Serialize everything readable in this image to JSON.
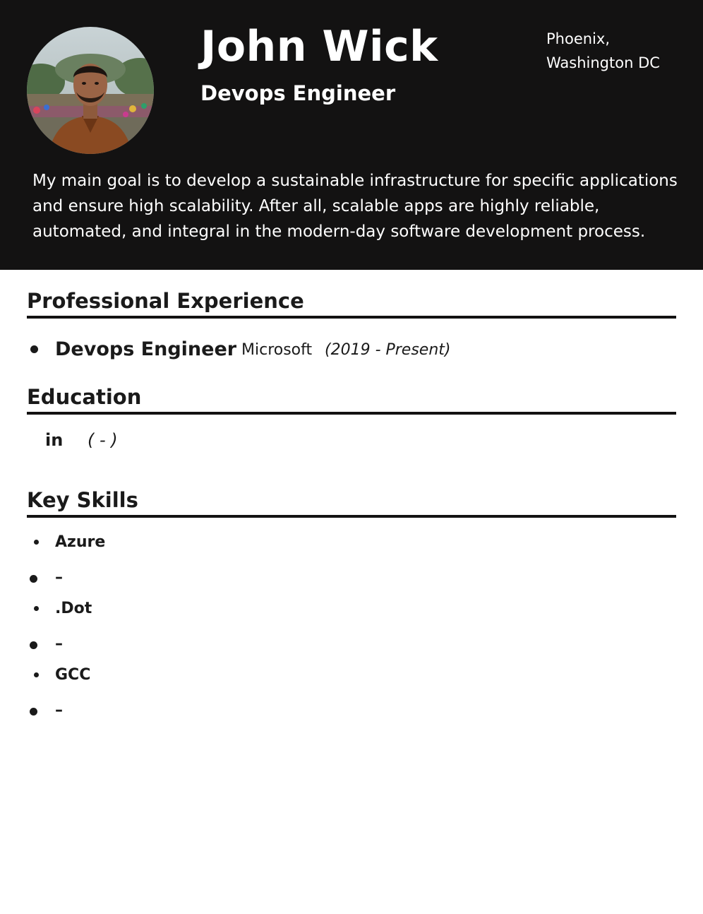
{
  "header": {
    "name": "John Wick",
    "role": "Devops Engineer",
    "location_line1": "Phoenix,",
    "location_line2": "Washington DC",
    "summary": "My main goal is to develop a sustainable infrastructure for specific applications and ensure high scalability. After all, scalable apps are highly reliable, automated, and integral in the modern-day software development process."
  },
  "experience": {
    "title": "Professional Experience",
    "items": [
      {
        "position": "Devops Engineer",
        "company": "Microsoft",
        "dates": "(2019 - Present)"
      }
    ]
  },
  "education": {
    "title": "Education",
    "items": [
      {
        "connector": "in",
        "dates": "( - )"
      }
    ]
  },
  "skills": {
    "title": "Key Skills",
    "items": [
      {
        "name": "Azure"
      },
      {
        "name": "–"
      },
      {
        "name": ".Dot"
      },
      {
        "name": "–"
      },
      {
        "name": "GCC"
      },
      {
        "name": "–"
      }
    ]
  },
  "colors": {
    "header_bg": "#131212",
    "header_text": "#ffffff",
    "body_text": "#1a1a1a"
  },
  "icons": {
    "avatar": "profile-photo"
  }
}
